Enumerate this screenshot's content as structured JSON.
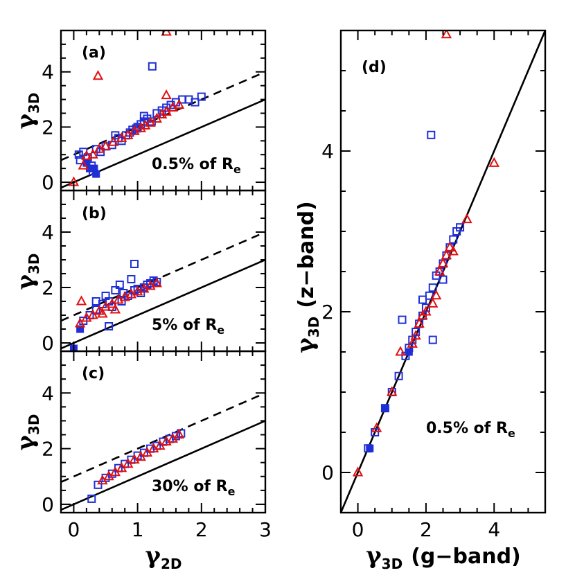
{
  "chart_data": [
    {
      "id": "a",
      "type": "scatter",
      "panel_label": "(a)",
      "annotation": {
        "text": "0.5% of R",
        "sub": "e"
      },
      "ylabel": {
        "main": "γ",
        "sub": "3D"
      },
      "xlabel": null,
      "xlim": [
        -0.2,
        3.0
      ],
      "ylim": [
        -0.3,
        5.5
      ],
      "xticks": [],
      "yticks": [
        0,
        2,
        4
      ],
      "reference_lines": [
        {
          "style": "solid",
          "slope": 1,
          "intercept": 0
        },
        {
          "style": "dashed",
          "slope": 1,
          "intercept": 1
        }
      ],
      "series": [
        {
          "marker": "open-square",
          "color": "#1f2fd6",
          "points": [
            [
              0.08,
              1.0
            ],
            [
              0.1,
              0.8
            ],
            [
              0.15,
              1.1
            ],
            [
              0.22,
              0.9
            ],
            [
              0.28,
              0.6
            ],
            [
              0.3,
              0.4
            ],
            [
              0.35,
              1.2
            ],
            [
              0.42,
              1.1
            ],
            [
              0.5,
              1.3
            ],
            [
              0.6,
              1.35
            ],
            [
              0.7,
              1.6
            ],
            [
              0.75,
              1.5
            ],
            [
              0.82,
              1.7
            ],
            [
              0.88,
              1.8
            ],
            [
              0.92,
              1.9
            ],
            [
              0.98,
              1.95
            ],
            [
              1.05,
              2.1
            ],
            [
              1.1,
              2.2
            ],
            [
              1.15,
              2.3
            ],
            [
              1.22,
              2.2
            ],
            [
              1.3,
              2.5
            ],
            [
              1.38,
              2.6
            ],
            [
              1.45,
              2.7
            ],
            [
              1.52,
              2.8
            ],
            [
              1.6,
              2.9
            ],
            [
              1.7,
              3.0
            ],
            [
              1.8,
              3.0
            ],
            [
              1.9,
              2.9
            ],
            [
              2.0,
              3.1
            ],
            [
              1.23,
              4.2
            ],
            [
              0.65,
              1.7
            ],
            [
              1.0,
              2.0
            ],
            [
              1.1,
              2.4
            ]
          ]
        },
        {
          "marker": "filled-square",
          "color": "#1f2fd6",
          "points": [
            [
              0.2,
              0.7
            ],
            [
              0.25,
              0.5
            ],
            [
              0.32,
              0.5
            ],
            [
              0.35,
              0.3
            ]
          ]
        },
        {
          "marker": "open-triangle",
          "color": "#e01010",
          "points": [
            [
              0.0,
              0.0
            ],
            [
              0.3,
              1.0
            ],
            [
              0.4,
              1.2
            ],
            [
              0.5,
              1.3
            ],
            [
              0.62,
              1.45
            ],
            [
              0.75,
              1.6
            ],
            [
              0.85,
              1.7
            ],
            [
              0.95,
              1.85
            ],
            [
              1.05,
              1.95
            ],
            [
              1.12,
              2.05
            ],
            [
              1.2,
              2.15
            ],
            [
              1.3,
              2.3
            ],
            [
              1.38,
              2.45
            ],
            [
              1.45,
              2.55
            ],
            [
              1.55,
              2.7
            ],
            [
              1.65,
              2.8
            ],
            [
              1.45,
              3.15
            ],
            [
              0.38,
              3.85
            ],
            [
              1.45,
              5.45
            ],
            [
              0.15,
              0.6
            ],
            [
              0.2,
              0.95
            ]
          ]
        }
      ]
    },
    {
      "id": "b",
      "type": "scatter",
      "panel_label": "(b)",
      "annotation": {
        "text": "5% of R",
        "sub": "e"
      },
      "ylabel": {
        "main": "γ",
        "sub": "3D"
      },
      "xlabel": null,
      "xlim": [
        -0.2,
        3.0
      ],
      "ylim": [
        -0.3,
        5.5
      ],
      "xticks": [],
      "yticks": [
        0,
        2,
        4
      ],
      "reference_lines": [
        {
          "style": "solid",
          "slope": 1,
          "intercept": 0
        },
        {
          "style": "dashed",
          "slope": 1,
          "intercept": 1
        }
      ],
      "series": [
        {
          "marker": "open-square",
          "color": "#1f2fd6",
          "points": [
            [
              0.15,
              0.8
            ],
            [
              0.25,
              1.0
            ],
            [
              0.35,
              1.2
            ],
            [
              0.45,
              1.4
            ],
            [
              0.55,
              1.5
            ],
            [
              0.6,
              1.3
            ],
            [
              0.65,
              1.9
            ],
            [
              0.72,
              2.1
            ],
            [
              0.78,
              1.8
            ],
            [
              0.85,
              1.7
            ],
            [
              0.9,
              2.3
            ],
            [
              0.95,
              1.9
            ],
            [
              1.0,
              1.95
            ],
            [
              1.05,
              1.8
            ],
            [
              1.1,
              2.0
            ],
            [
              1.15,
              2.1
            ],
            [
              1.2,
              2.15
            ],
            [
              1.3,
              2.2
            ],
            [
              0.95,
              2.85
            ],
            [
              0.55,
              0.6
            ],
            [
              0.5,
              1.7
            ],
            [
              0.35,
              1.5
            ],
            [
              0.75,
              1.5
            ],
            [
              1.25,
              2.25
            ]
          ]
        },
        {
          "marker": "filled-square",
          "color": "#1f2fd6",
          "points": [
            [
              0.0,
              -0.2
            ],
            [
              0.1,
              0.5
            ]
          ]
        },
        {
          "marker": "open-triangle",
          "color": "#e01010",
          "points": [
            [
              0.1,
              0.7
            ],
            [
              0.2,
              0.9
            ],
            [
              0.3,
              1.0
            ],
            [
              0.4,
              1.15
            ],
            [
              0.5,
              1.3
            ],
            [
              0.6,
              1.4
            ],
            [
              0.7,
              1.55
            ],
            [
              0.8,
              1.65
            ],
            [
              0.9,
              1.75
            ],
            [
              1.0,
              1.85
            ],
            [
              1.1,
              1.95
            ],
            [
              1.2,
              2.05
            ],
            [
              1.3,
              2.15
            ],
            [
              0.12,
              1.5
            ],
            [
              0.45,
              1.05
            ],
            [
              0.65,
              1.2
            ]
          ]
        }
      ]
    },
    {
      "id": "c",
      "type": "scatter",
      "panel_label": "(c)",
      "annotation": {
        "text": "30% of R",
        "sub": "e"
      },
      "ylabel": {
        "main": "γ",
        "sub": "3D"
      },
      "xlabel": {
        "main": "γ",
        "sub": "2D"
      },
      "xlim": [
        -0.2,
        3.0
      ],
      "ylim": [
        -0.3,
        5.5
      ],
      "xticks": [
        0,
        1,
        2,
        3
      ],
      "yticks": [
        0,
        2,
        4
      ],
      "reference_lines": [
        {
          "style": "solid",
          "slope": 1,
          "intercept": 0
        },
        {
          "style": "dashed",
          "slope": 1,
          "intercept": 1
        }
      ],
      "series": [
        {
          "marker": "open-square",
          "color": "#1f2fd6",
          "points": [
            [
              0.28,
              0.2
            ],
            [
              0.38,
              0.7
            ],
            [
              0.5,
              0.95
            ],
            [
              0.6,
              1.1
            ],
            [
              0.7,
              1.3
            ],
            [
              0.8,
              1.45
            ],
            [
              0.9,
              1.6
            ],
            [
              1.0,
              1.75
            ],
            [
              1.1,
              1.85
            ],
            [
              1.2,
              2.0
            ],
            [
              1.3,
              2.1
            ],
            [
              1.4,
              2.25
            ],
            [
              1.5,
              2.35
            ],
            [
              1.6,
              2.45
            ],
            [
              1.68,
              2.55
            ]
          ]
        },
        {
          "marker": "open-triangle",
          "color": "#e01010",
          "points": [
            [
              0.45,
              0.85
            ],
            [
              0.55,
              1.0
            ],
            [
              0.65,
              1.15
            ],
            [
              0.75,
              1.3
            ],
            [
              0.85,
              1.45
            ],
            [
              0.95,
              1.6
            ],
            [
              1.05,
              1.7
            ],
            [
              1.15,
              1.85
            ],
            [
              1.25,
              2.0
            ],
            [
              1.35,
              2.1
            ],
            [
              1.45,
              2.25
            ],
            [
              1.55,
              2.35
            ],
            [
              1.65,
              2.5
            ]
          ]
        }
      ]
    },
    {
      "id": "d",
      "type": "scatter",
      "panel_label": "(d)",
      "annotation": {
        "text": "0.5% of R",
        "sub": "e"
      },
      "ylabel": {
        "main": "γ",
        "sub": "3D",
        "word": "(z−band)"
      },
      "xlabel": {
        "main": "γ",
        "sub": "3D",
        "word": "(g−band)"
      },
      "xlim": [
        -0.5,
        5.5
      ],
      "ylim": [
        -0.5,
        5.5
      ],
      "xticks": [
        0,
        2,
        4
      ],
      "yticks": [
        0,
        2,
        4
      ],
      "reference_lines": [
        {
          "style": "solid",
          "slope": 1,
          "intercept": 0
        }
      ],
      "series": [
        {
          "marker": "open-square",
          "color": "#1f2fd6",
          "points": [
            [
              0.3,
              0.3
            ],
            [
              0.5,
              0.5
            ],
            [
              0.8,
              0.8
            ],
            [
              1.0,
              1.0
            ],
            [
              1.2,
              1.2
            ],
            [
              1.4,
              1.45
            ],
            [
              1.5,
              1.55
            ],
            [
              1.6,
              1.65
            ],
            [
              1.7,
              1.75
            ],
            [
              1.8,
              1.85
            ],
            [
              1.9,
              1.95
            ],
            [
              2.0,
              2.05
            ],
            [
              2.1,
              2.2
            ],
            [
              2.2,
              2.3
            ],
            [
              2.3,
              2.45
            ],
            [
              2.4,
              2.5
            ],
            [
              2.5,
              2.6
            ],
            [
              2.6,
              2.7
            ],
            [
              2.7,
              2.8
            ],
            [
              2.8,
              2.9
            ],
            [
              2.9,
              3.0
            ],
            [
              3.0,
              3.05
            ],
            [
              2.2,
              1.65
            ],
            [
              1.3,
              1.9
            ],
            [
              2.15,
              4.2
            ],
            [
              1.9,
              2.15
            ],
            [
              2.5,
              2.4
            ]
          ]
        },
        {
          "marker": "filled-square",
          "color": "#1f2fd6",
          "points": [
            [
              0.35,
              0.3
            ],
            [
              0.8,
              0.8
            ],
            [
              1.5,
              1.5
            ]
          ]
        },
        {
          "marker": "open-triangle",
          "color": "#e01010",
          "points": [
            [
              0.0,
              0.0
            ],
            [
              0.55,
              0.55
            ],
            [
              1.0,
              1.0
            ],
            [
              1.25,
              1.5
            ],
            [
              1.6,
              1.6
            ],
            [
              1.7,
              1.7
            ],
            [
              1.8,
              1.85
            ],
            [
              1.9,
              1.95
            ],
            [
              2.0,
              2.0
            ],
            [
              2.2,
              2.1
            ],
            [
              2.3,
              2.2
            ],
            [
              2.4,
              2.5
            ],
            [
              2.5,
              2.6
            ],
            [
              2.6,
              2.7
            ],
            [
              2.7,
              2.8
            ],
            [
              2.8,
              2.75
            ],
            [
              3.2,
              3.15
            ],
            [
              2.6,
              5.45
            ],
            [
              4.0,
              3.85
            ]
          ]
        }
      ]
    }
  ]
}
